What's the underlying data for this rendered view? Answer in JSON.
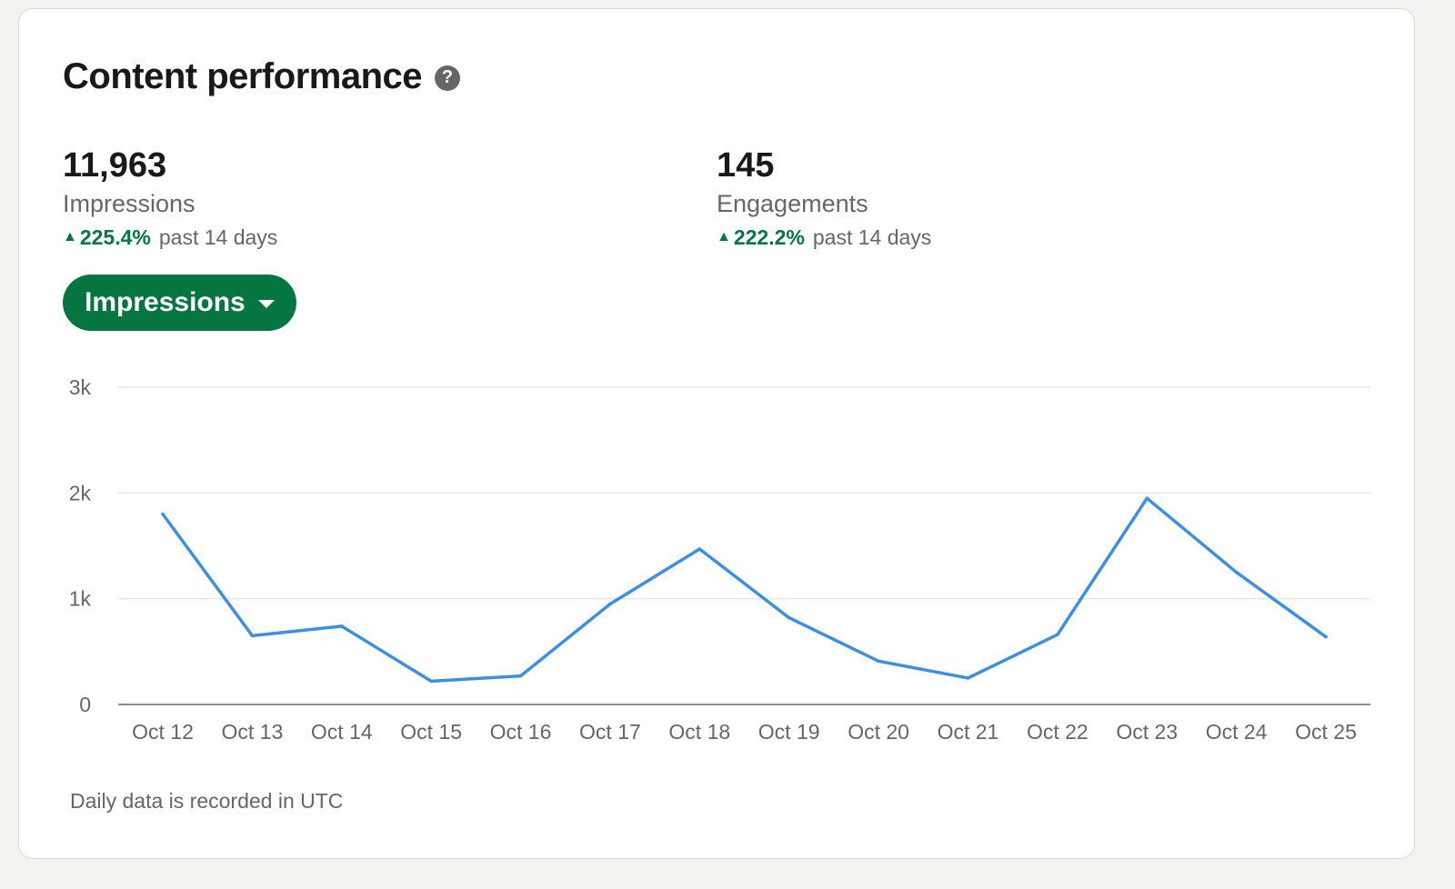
{
  "header": {
    "title": "Content performance",
    "help_icon": "question-circle-icon"
  },
  "metrics": [
    {
      "value": "11,963",
      "label": "Impressions",
      "change_pct": "225.4%",
      "change_period": "past 14 days",
      "trend": "up"
    },
    {
      "value": "145",
      "label": "Engagements",
      "change_pct": "222.2%",
      "change_period": "past 14 days",
      "trend": "up"
    }
  ],
  "dropdown": {
    "selected": "Impressions"
  },
  "colors": {
    "accent_green": "#057642",
    "line_blue": "#3d8fe0",
    "grid": "#e6e6e6",
    "axis": "#8c8c8c"
  },
  "chart_data": {
    "type": "line",
    "categories": [
      "Oct 12",
      "Oct 13",
      "Oct 14",
      "Oct 15",
      "Oct 16",
      "Oct 17",
      "Oct 18",
      "Oct 19",
      "Oct 20",
      "Oct 21",
      "Oct 22",
      "Oct 23",
      "Oct 24",
      "Oct 25"
    ],
    "series": [
      {
        "values": [
          1800,
          650,
          740,
          220,
          270,
          950,
          1470,
          820,
          410,
          250,
          660,
          1950,
          1250,
          640
        ]
      }
    ],
    "yticks": [
      0,
      1000,
      2000,
      3000
    ],
    "ytick_labels": [
      "0",
      "1k",
      "2k",
      "3k"
    ],
    "ylim": [
      0,
      3000
    ],
    "grid": true
  },
  "footnote": "Daily data is recorded in UTC"
}
